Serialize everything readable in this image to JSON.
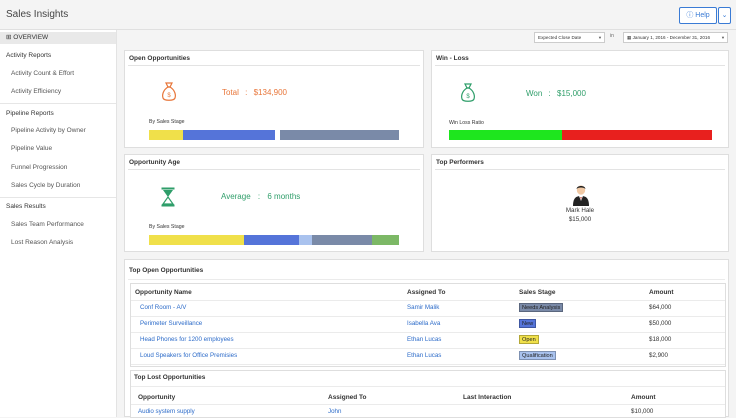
{
  "app": {
    "title": "Sales Insights"
  },
  "help": {
    "label": "Help",
    "caret": "⌄"
  },
  "sidebar": {
    "overview": "OVERVIEW",
    "groups": [
      {
        "title": "Activity Reports",
        "items": [
          "Activity Count & Effort",
          "Activity Efficiency"
        ]
      },
      {
        "title": "Pipeline Reports",
        "items": [
          "Pipeline Activity by Owner",
          "Pipeline Value",
          "Funnel Progression",
          "Sales Cycle by Duration"
        ]
      },
      {
        "title": "Sales Results",
        "items": [
          "Sales Team Performance",
          "Lost Reason Analysis"
        ]
      }
    ]
  },
  "filters": {
    "date_field": "Expected Close Date",
    "in_label": "in",
    "date_range": "January 1, 2016 - December 31, 2016"
  },
  "cards": {
    "open_opps": {
      "title": "Open Opportunities",
      "metric_label": "Total",
      "metric_sep": ":",
      "metric_value": "$134,900",
      "sub_label": "By Sales Stage",
      "icon": "money-bag-icon",
      "color": "#e8763a",
      "bar": [
        {
          "fraction": 0.135,
          "color": "#f0e04a"
        },
        {
          "fraction": 0.37,
          "color": "#5574d9"
        },
        {
          "fraction": 0.02,
          "color": "#ffffff"
        },
        {
          "fraction": 0.475,
          "color": "#7a8aa8"
        }
      ]
    },
    "win_loss": {
      "title": "Win - Loss",
      "metric_label": "Won",
      "metric_sep": ":",
      "metric_value": "$15,000",
      "sub_label": "Win Loss Ratio",
      "icon": "money-bag-icon",
      "color": "#2f9e6a",
      "bar": [
        {
          "fraction": 0.43,
          "color": "#1ee61e"
        },
        {
          "fraction": 0.57,
          "color": "#e8201e"
        }
      ]
    },
    "opp_age": {
      "title": "Opportunity Age",
      "metric_label": "Average",
      "metric_sep": ":",
      "metric_value": "6 months",
      "sub_label": "By Sales Stage",
      "icon": "hourglass-icon",
      "color": "#2f9e6a",
      "bar": [
        {
          "fraction": 0.38,
          "color": "#f0e04a"
        },
        {
          "fraction": 0.22,
          "color": "#5574d9"
        },
        {
          "fraction": 0.05,
          "color": "#a9c2ee"
        },
        {
          "fraction": 0.24,
          "color": "#7a8aa8"
        },
        {
          "fraction": 0.11,
          "color": "#7cb866"
        }
      ]
    },
    "top_performers": {
      "title": "Top Performers",
      "name": "Mark Hale",
      "amount": "$15,000"
    }
  },
  "top_open": {
    "title": "Top Open Opportunities",
    "headers": [
      "Opportunity Name",
      "Assigned To",
      "Sales Stage",
      "Amount"
    ],
    "rows": [
      {
        "name": "Conf Room - A/V",
        "assigned": "Samir Malik",
        "stage": "Needs Analysis",
        "stage_color": "#7a8aa8",
        "amount": "$64,000"
      },
      {
        "name": "Perimeter Surveillance",
        "assigned": "Isabella Ava",
        "stage": "New",
        "stage_color": "#5574d9",
        "amount": "$50,000"
      },
      {
        "name": "Head Phones for 1200 employees",
        "assigned": "Ethan Lucas",
        "stage": "Open",
        "stage_color": "#f0e04a",
        "amount": "$18,000"
      },
      {
        "name": "Loud Speakers for Office Premisies",
        "assigned": "Ethan Lucas",
        "stage": "Qualification",
        "stage_color": "#a9c2ee",
        "amount": "$2,900"
      }
    ]
  },
  "top_lost": {
    "title": "Top Lost Opportunities",
    "headers": [
      "Opportunity",
      "Assigned To",
      "Last Interaction",
      "Amount"
    ],
    "rows": [
      {
        "name": "Audio system supply",
        "assigned": "John",
        "last": "",
        "amount": "$10,000"
      }
    ]
  }
}
